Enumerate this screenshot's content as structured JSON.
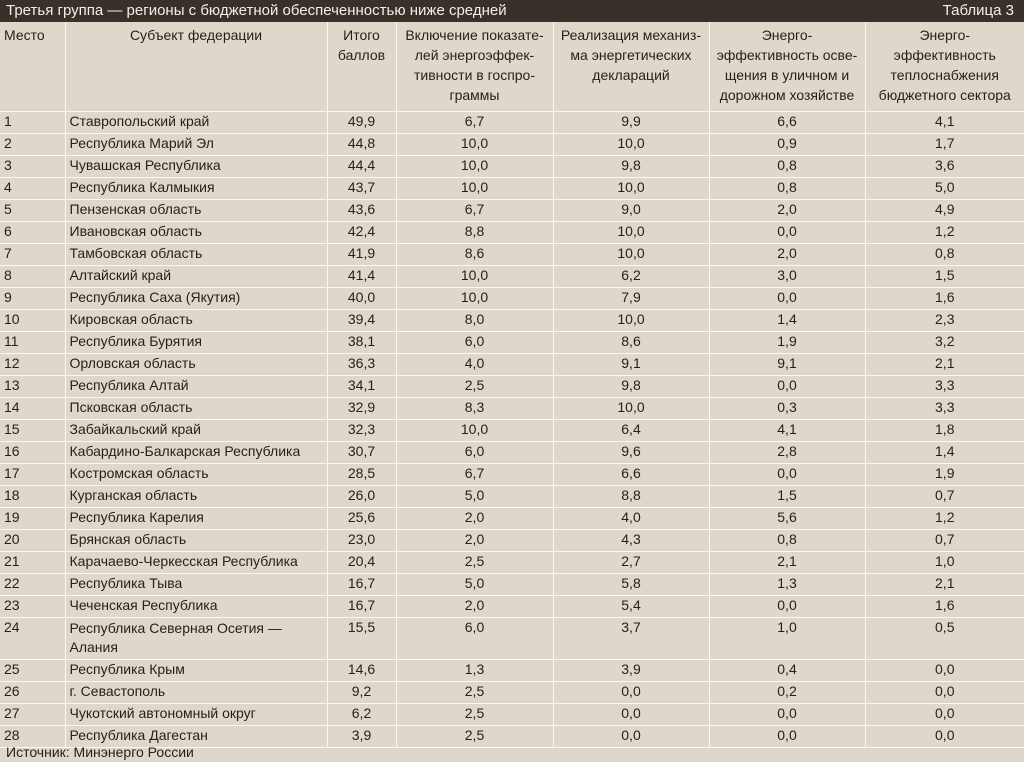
{
  "header": {
    "title": "Третья группа — регионы с бюджетной обеспеченностью ниже средней",
    "table_number": "Таблица 3"
  },
  "columns": [
    "Место",
    "Субъект федерации",
    "Итого баллов",
    "Включение показате-лей энергоэффек-тивности в госпро-граммы",
    "Реализация механиз-ма энергетических деклараций",
    "Энерго-эффективность осве-щения в уличном и дорожном хозяйстве",
    "Энерго-эффективность теплоснабжения бюджетного сектора"
  ],
  "rows": [
    [
      "1",
      "Ставропольский край",
      "49,9",
      "6,7",
      "9,9",
      "6,6",
      "4,1"
    ],
    [
      "2",
      "Республика Марий Эл",
      "44,8",
      "10,0",
      "10,0",
      "0,9",
      "1,7"
    ],
    [
      "3",
      "Чувашская Республика",
      "44,4",
      "10,0",
      "9,8",
      "0,8",
      "3,6"
    ],
    [
      "4",
      "Республика Калмыкия",
      "43,7",
      "10,0",
      "10,0",
      "0,8",
      "5,0"
    ],
    [
      "5",
      "Пензенская область",
      "43,6",
      "6,7",
      "9,0",
      "2,0",
      "4,9"
    ],
    [
      "6",
      "Ивановская область",
      "42,4",
      "8,8",
      "10,0",
      "0,0",
      "1,2"
    ],
    [
      "7",
      "Тамбовская область",
      "41,9",
      "8,6",
      "10,0",
      "2,0",
      "0,8"
    ],
    [
      "8",
      "Алтайский край",
      "41,4",
      "10,0",
      "6,2",
      "3,0",
      "1,5"
    ],
    [
      "9",
      "Республика Саха (Якутия)",
      "40,0",
      "10,0",
      "7,9",
      "0,0",
      "1,6"
    ],
    [
      "10",
      "Кировская область",
      "39,4",
      "8,0",
      "10,0",
      "1,4",
      "2,3"
    ],
    [
      "11",
      "Республика Бурятия",
      "38,1",
      "6,0",
      "8,6",
      "1,9",
      "3,2"
    ],
    [
      "12",
      "Орловская область",
      "36,3",
      "4,0",
      "9,1",
      "9,1",
      "2,1"
    ],
    [
      "13",
      "Республика Алтай",
      "34,1",
      "2,5",
      "9,8",
      "0,0",
      "3,3"
    ],
    [
      "14",
      "Псковская область",
      "32,9",
      "8,3",
      "10,0",
      "0,3",
      "3,3"
    ],
    [
      "15",
      "Забайкальский край",
      "32,3",
      "10,0",
      "6,4",
      "4,1",
      "1,8"
    ],
    [
      "16",
      "Кабардино-Балкарская Республика",
      "30,7",
      "6,0",
      "9,6",
      "2,8",
      "1,4"
    ],
    [
      "17",
      "Костромская область",
      "28,5",
      "6,7",
      "6,6",
      "0,0",
      "1,9"
    ],
    [
      "18",
      "Курганская область",
      "26,0",
      "5,0",
      "8,8",
      "1,5",
      "0,7"
    ],
    [
      "19",
      "Республика Карелия",
      "25,6",
      "2,0",
      "4,0",
      "5,6",
      "1,2"
    ],
    [
      "20",
      "Брянская область",
      "23,0",
      "2,0",
      "4,3",
      "0,8",
      "0,7"
    ],
    [
      "21",
      "Карачаево-Черкесская Республика",
      "20,4",
      "2,5",
      "2,7",
      "2,1",
      "1,0"
    ],
    [
      "22",
      "Республика Тыва",
      "16,7",
      "5,0",
      "5,8",
      "1,3",
      "2,1"
    ],
    [
      "23",
      "Чеченская Республика",
      "16,7",
      "2,0",
      "5,4",
      "0,0",
      "1,6"
    ],
    [
      "24",
      "Республика Северная Осетия — Алания",
      "15,5",
      "6,0",
      "3,7",
      "1,0",
      "0,5"
    ],
    [
      "25",
      "Республика Крым",
      "14,6",
      "1,3",
      "3,9",
      "0,4",
      "0,0"
    ],
    [
      "26",
      "г. Севастополь",
      "9,2",
      "2,5",
      "0,0",
      "0,2",
      "0,0"
    ],
    [
      "27",
      "Чукотский автономный округ",
      "6,2",
      "2,5",
      "0,0",
      "0,0",
      "0,0"
    ],
    [
      "28",
      "Республика Дагестан",
      "3,9",
      "2,5",
      "0,0",
      "0,0",
      "0,0"
    ]
  ],
  "footer": {
    "source": "Источник: Минэнерго России"
  },
  "colors": {
    "background": "#ded7cc",
    "title_bar": "#3a302b",
    "grid_lines": "#fbf8f2",
    "text": "#231f1c"
  }
}
